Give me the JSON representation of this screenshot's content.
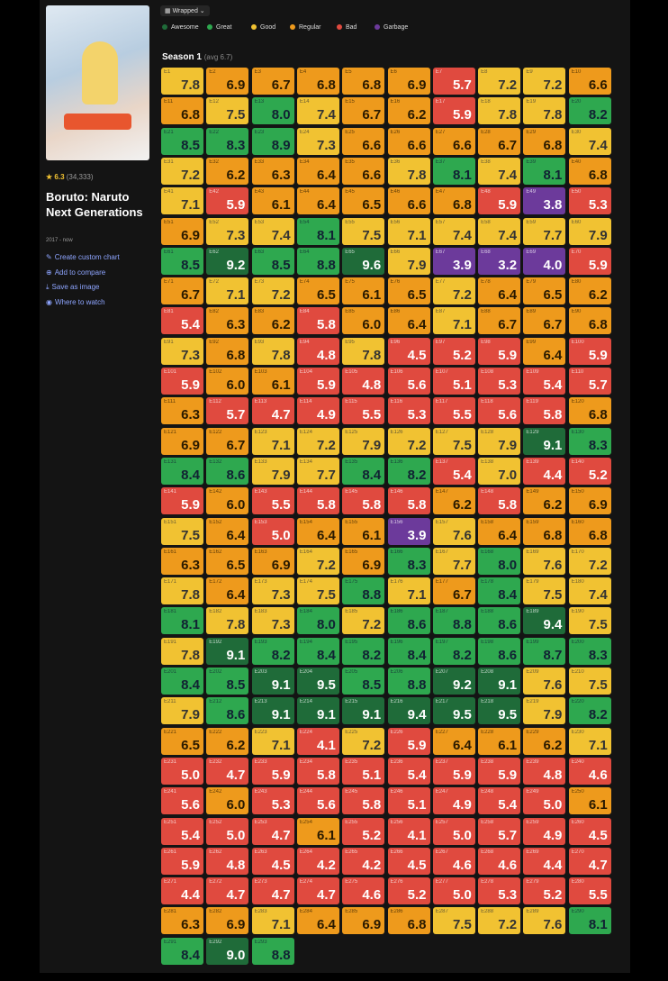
{
  "sidebar": {
    "rating": "★ 6.3",
    "votes": "(34,333)",
    "title": "Boruto: Naruto Next Generations",
    "years": "2017 - now",
    "links": [
      "Create custom chart",
      "Add to compare",
      "Save as image",
      "Where to watch"
    ]
  },
  "toolbar": {
    "view": "Wrapped"
  },
  "legend": [
    "Awesome",
    "Great",
    "Good",
    "Regular",
    "Bad",
    "Garbage"
  ],
  "season": {
    "title": "Season 1",
    "avg": "(avg 6.7)",
    "ratings": [
      "7.8",
      "6.9",
      "6.7",
      "6.8",
      "6.8",
      "6.9",
      "5.7",
      "7.2",
      "7.2",
      "6.6",
      "6.8",
      "7.5",
      "8.0",
      "7.4",
      "6.7",
      "6.2",
      "5.9",
      "7.8",
      "7.8",
      "8.2",
      "8.5",
      "8.3",
      "8.9",
      "7.3",
      "6.6",
      "6.6",
      "6.6",
      "6.7",
      "6.8",
      "7.4",
      "7.2",
      "6.2",
      "6.3",
      "6.4",
      "6.6",
      "7.8",
      "8.1",
      "7.4",
      "8.1",
      "6.8",
      "7.1",
      "5.9",
      "6.1",
      "6.4",
      "6.5",
      "6.6",
      "6.8",
      "5.9",
      "3.8",
      "5.3",
      "6.9",
      "7.3",
      "7.4",
      "8.1",
      "7.5",
      "7.1",
      "7.4",
      "7.4",
      "7.7",
      "7.9",
      "8.5",
      "9.2",
      "8.5",
      "8.8",
      "9.6",
      "7.9",
      "3.9",
      "3.2",
      "4.0",
      "5.9",
      "6.7",
      "7.1",
      "7.2",
      "6.5",
      "6.1",
      "6.5",
      "7.2",
      "6.4",
      "6.5",
      "6.2",
      "5.4",
      "6.3",
      "6.2",
      "5.8",
      "6.0",
      "6.4",
      "7.1",
      "6.7",
      "6.7",
      "6.8",
      "7.3",
      "6.8",
      "7.8",
      "4.8",
      "7.8",
      "4.5",
      "5.2",
      "5.9",
      "6.4",
      "5.9",
      "5.9",
      "6.0",
      "6.1",
      "5.9",
      "4.8",
      "5.6",
      "5.1",
      "5.3",
      "5.4",
      "5.7",
      "6.3",
      "5.7",
      "4.7",
      "4.9",
      "5.5",
      "5.3",
      "5.5",
      "5.6",
      "5.8",
      "6.8",
      "6.9",
      "6.7",
      "7.1",
      "7.2",
      "7.9",
      "7.2",
      "7.5",
      "7.9",
      "9.1",
      "8.3",
      "8.4",
      "8.6",
      "7.9",
      "7.7",
      "8.4",
      "8.2",
      "5.4",
      "7.0",
      "4.4",
      "5.2",
      "5.9",
      "6.0",
      "5.5",
      "5.8",
      "5.8",
      "5.8",
      "6.2",
      "5.8",
      "6.2",
      "6.9",
      "7.5",
      "6.4",
      "5.0",
      "6.4",
      "6.1",
      "3.9",
      "7.6",
      "6.4",
      "6.8",
      "6.8",
      "6.3",
      "6.5",
      "6.9",
      "7.2",
      "6.9",
      "8.3",
      "7.7",
      "8.0",
      "7.6",
      "7.2",
      "7.8",
      "6.4",
      "7.3",
      "7.5",
      "8.8",
      "7.1",
      "6.7",
      "8.4",
      "7.5",
      "7.4",
      "8.1",
      "7.8",
      "7.3",
      "8.0",
      "7.2",
      "8.6",
      "8.8",
      "8.6",
      "9.4",
      "7.5",
      "7.8",
      "9.1",
      "8.2",
      "8.4",
      "8.2",
      "8.4",
      "8.2",
      "8.6",
      "8.7",
      "8.3",
      "8.4",
      "8.5",
      "9.1",
      "9.5",
      "8.5",
      "8.8",
      "9.2",
      "9.1",
      "7.6",
      "7.5",
      "7.9",
      "8.6",
      "9.1",
      "9.1",
      "9.1",
      "9.4",
      "9.5",
      "9.5",
      "7.9",
      "8.2",
      "6.5",
      "6.2",
      "7.1",
      "4.1",
      "7.2",
      "5.9",
      "6.4",
      "6.1",
      "6.2",
      "7.1",
      "5.0",
      "4.7",
      "5.9",
      "5.8",
      "5.1",
      "5.4",
      "5.9",
      "5.9",
      "4.8",
      "4.6",
      "5.6",
      "6.0",
      "5.3",
      "5.6",
      "5.8",
      "5.1",
      "4.9",
      "5.4",
      "5.0",
      "6.1",
      "5.4",
      "5.0",
      "4.7",
      "6.1",
      "5.2",
      "4.1",
      "5.0",
      "5.7",
      "4.9",
      "4.5",
      "5.9",
      "4.8",
      "4.5",
      "4.2",
      "4.2",
      "4.5",
      "4.6",
      "4.6",
      "4.4",
      "4.7",
      "4.4",
      "4.7",
      "4.7",
      "4.7",
      "4.6",
      "5.2",
      "5.0",
      "5.3",
      "5.2",
      "5.5",
      "6.3",
      "6.9",
      "7.1",
      "6.4",
      "6.9",
      "6.8",
      "7.5",
      "7.2",
      "7.6",
      "8.1",
      "8.4",
      "9.0",
      "8.8"
    ]
  }
}
